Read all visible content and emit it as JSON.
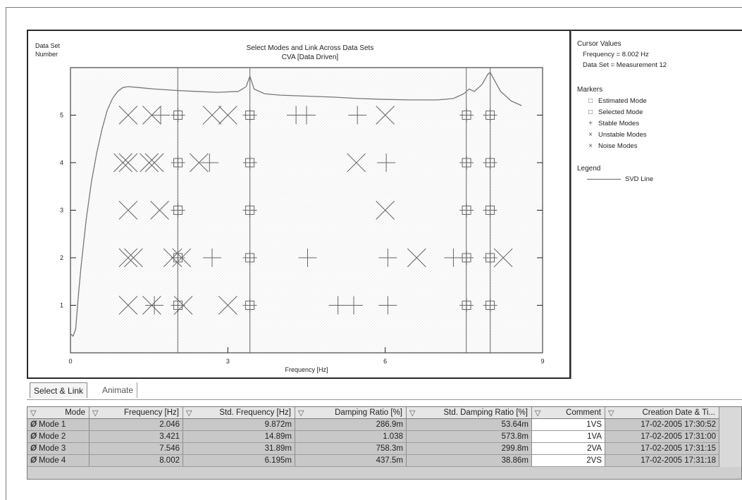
{
  "chart_data": {
    "type": "scatter",
    "title": "Select Modes and Link Across Data Sets",
    "subtitle": "CVA [Data Driven]",
    "xlabel": "Frequency [Hz]",
    "ylabel": "Data Set Number",
    "ylabel_line1": "Data Set",
    "ylabel_line2": "Number",
    "xlim": [
      0,
      9
    ],
    "ylim": [
      0,
      6
    ],
    "xticks": [
      "0",
      "3",
      "6",
      "9"
    ],
    "yticks": [
      "1",
      "2",
      "3",
      "4",
      "5"
    ],
    "grid": false,
    "series": [
      {
        "name": "Selected Mode",
        "symbol": "square-plus",
        "points": [
          {
            "x": 2.05,
            "y": 5
          },
          {
            "x": 3.42,
            "y": 5
          },
          {
            "x": 7.55,
            "y": 5
          },
          {
            "x": 8.0,
            "y": 5
          },
          {
            "x": 2.05,
            "y": 4
          },
          {
            "x": 3.42,
            "y": 4
          },
          {
            "x": 7.55,
            "y": 4
          },
          {
            "x": 8.0,
            "y": 4
          },
          {
            "x": 2.05,
            "y": 3
          },
          {
            "x": 3.42,
            "y": 3
          },
          {
            "x": 7.55,
            "y": 3
          },
          {
            "x": 8.0,
            "y": 3
          },
          {
            "x": 2.05,
            "y": 2
          },
          {
            "x": 3.42,
            "y": 2
          },
          {
            "x": 7.55,
            "y": 2
          },
          {
            "x": 8.0,
            "y": 2
          },
          {
            "x": 2.05,
            "y": 1
          },
          {
            "x": 3.42,
            "y": 1
          },
          {
            "x": 7.55,
            "y": 1
          },
          {
            "x": 8.0,
            "y": 1
          }
        ]
      },
      {
        "name": "Stable Modes",
        "symbol": "plus",
        "points": [
          {
            "x": 1.72,
            "y": 5
          },
          {
            "x": 4.3,
            "y": 5
          },
          {
            "x": 4.5,
            "y": 5
          },
          {
            "x": 5.47,
            "y": 5
          },
          {
            "x": 2.65,
            "y": 4
          },
          {
            "x": 6.02,
            "y": 4
          },
          {
            "x": 2.7,
            "y": 2
          },
          {
            "x": 4.52,
            "y": 2
          },
          {
            "x": 6.05,
            "y": 2
          },
          {
            "x": 7.3,
            "y": 2
          },
          {
            "x": 1.6,
            "y": 1
          },
          {
            "x": 5.1,
            "y": 1
          },
          {
            "x": 5.4,
            "y": 1
          },
          {
            "x": 6.05,
            "y": 1
          }
        ]
      },
      {
        "name": "Unstable Modes",
        "symbol": "cross",
        "points": [
          {
            "x": 1.1,
            "y": 5
          },
          {
            "x": 1.55,
            "y": 5
          },
          {
            "x": 2.7,
            "y": 5
          },
          {
            "x": 3.0,
            "y": 5
          },
          {
            "x": 6.0,
            "y": 5
          },
          {
            "x": 1.0,
            "y": 4
          },
          {
            "x": 1.1,
            "y": 4
          },
          {
            "x": 1.5,
            "y": 4
          },
          {
            "x": 1.6,
            "y": 4
          },
          {
            "x": 2.45,
            "y": 4
          },
          {
            "x": 5.45,
            "y": 4
          },
          {
            "x": 1.1,
            "y": 3
          },
          {
            "x": 1.7,
            "y": 3
          },
          {
            "x": 6.0,
            "y": 3
          },
          {
            "x": 1.1,
            "y": 2
          },
          {
            "x": 1.2,
            "y": 2
          },
          {
            "x": 1.95,
            "y": 2
          },
          {
            "x": 2.12,
            "y": 2
          },
          {
            "x": 6.6,
            "y": 2
          },
          {
            "x": 8.25,
            "y": 2
          },
          {
            "x": 1.1,
            "y": 1
          },
          {
            "x": 1.55,
            "y": 1
          },
          {
            "x": 2.15,
            "y": 1
          },
          {
            "x": 3.0,
            "y": 1
          }
        ]
      }
    ],
    "mode_lines_x": [
      2.046,
      3.421,
      7.546,
      8.002
    ],
    "svd_line": {
      "name": "SVD Line",
      "x": [
        0,
        0.05,
        0.1,
        0.15,
        0.2,
        0.3,
        0.4,
        0.5,
        0.6,
        0.7,
        0.8,
        0.9,
        1.0,
        1.1,
        1.3,
        1.6,
        2.0,
        2.4,
        2.8,
        3.2,
        3.35,
        3.42,
        3.5,
        3.7,
        4.0,
        4.5,
        5.0,
        5.5,
        6.0,
        6.5,
        7.0,
        7.3,
        7.5,
        7.6,
        7.7,
        7.85,
        7.95,
        8.0,
        8.1,
        8.2,
        8.3,
        8.4,
        8.5,
        8.6
      ],
      "y": [
        0.4,
        0.35,
        0.5,
        1.2,
        1.8,
        2.8,
        3.6,
        4.2,
        4.7,
        5.1,
        5.35,
        5.5,
        5.58,
        5.6,
        5.58,
        5.55,
        5.52,
        5.5,
        5.48,
        5.5,
        5.6,
        5.82,
        5.55,
        5.45,
        5.42,
        5.4,
        5.38,
        5.35,
        5.33,
        5.32,
        5.32,
        5.35,
        5.45,
        5.55,
        5.5,
        5.65,
        5.85,
        5.9,
        5.7,
        5.5,
        5.4,
        5.3,
        5.25,
        5.2
      ]
    }
  },
  "cursor": {
    "title": "Cursor Values",
    "frequency": "Frequency = 8.002 Hz",
    "data_set": "Data Set = Measurement 12"
  },
  "markers": {
    "title": "Markers",
    "items": [
      {
        "label": "Estimated Mode",
        "symbol": "□"
      },
      {
        "label": "Selected Mode",
        "symbol": "□"
      },
      {
        "label": "Stable Modes",
        "symbol": "+"
      },
      {
        "label": "Unstable Modes",
        "symbol": "×"
      },
      {
        "label": "Noise Modes",
        "symbol": "×"
      }
    ]
  },
  "legend": {
    "title": "Legend",
    "svd": "SVD Line"
  },
  "tabs": {
    "select_link": "Select & Link",
    "animate": "Animate"
  },
  "table": {
    "columns": [
      "Mode",
      "Frequency [Hz]",
      "Std. Frequency [Hz]",
      "Damping Ratio [%]",
      "Std. Damping Ratio [%]",
      "Comment",
      "Creation Date & Ti..."
    ],
    "rows": [
      [
        "Mode 1",
        "2.046",
        "9.872m",
        "286.9m",
        "53.64m",
        "1VS",
        "17-02-2005  17:30:52"
      ],
      [
        "Mode 2",
        "3.421",
        "14.89m",
        "1.038",
        "573.8m",
        "1VA",
        "17-02-2005  17:31:00"
      ],
      [
        "Mode 3",
        "7.546",
        "31.89m",
        "758.3m",
        "299.8m",
        "2VA",
        "17-02-2005  17:31:15"
      ],
      [
        "Mode 4",
        "8.002",
        "6.195m",
        "437.5m",
        "38.86m",
        "2VS",
        "17-02-2005  17:31:18"
      ]
    ]
  }
}
